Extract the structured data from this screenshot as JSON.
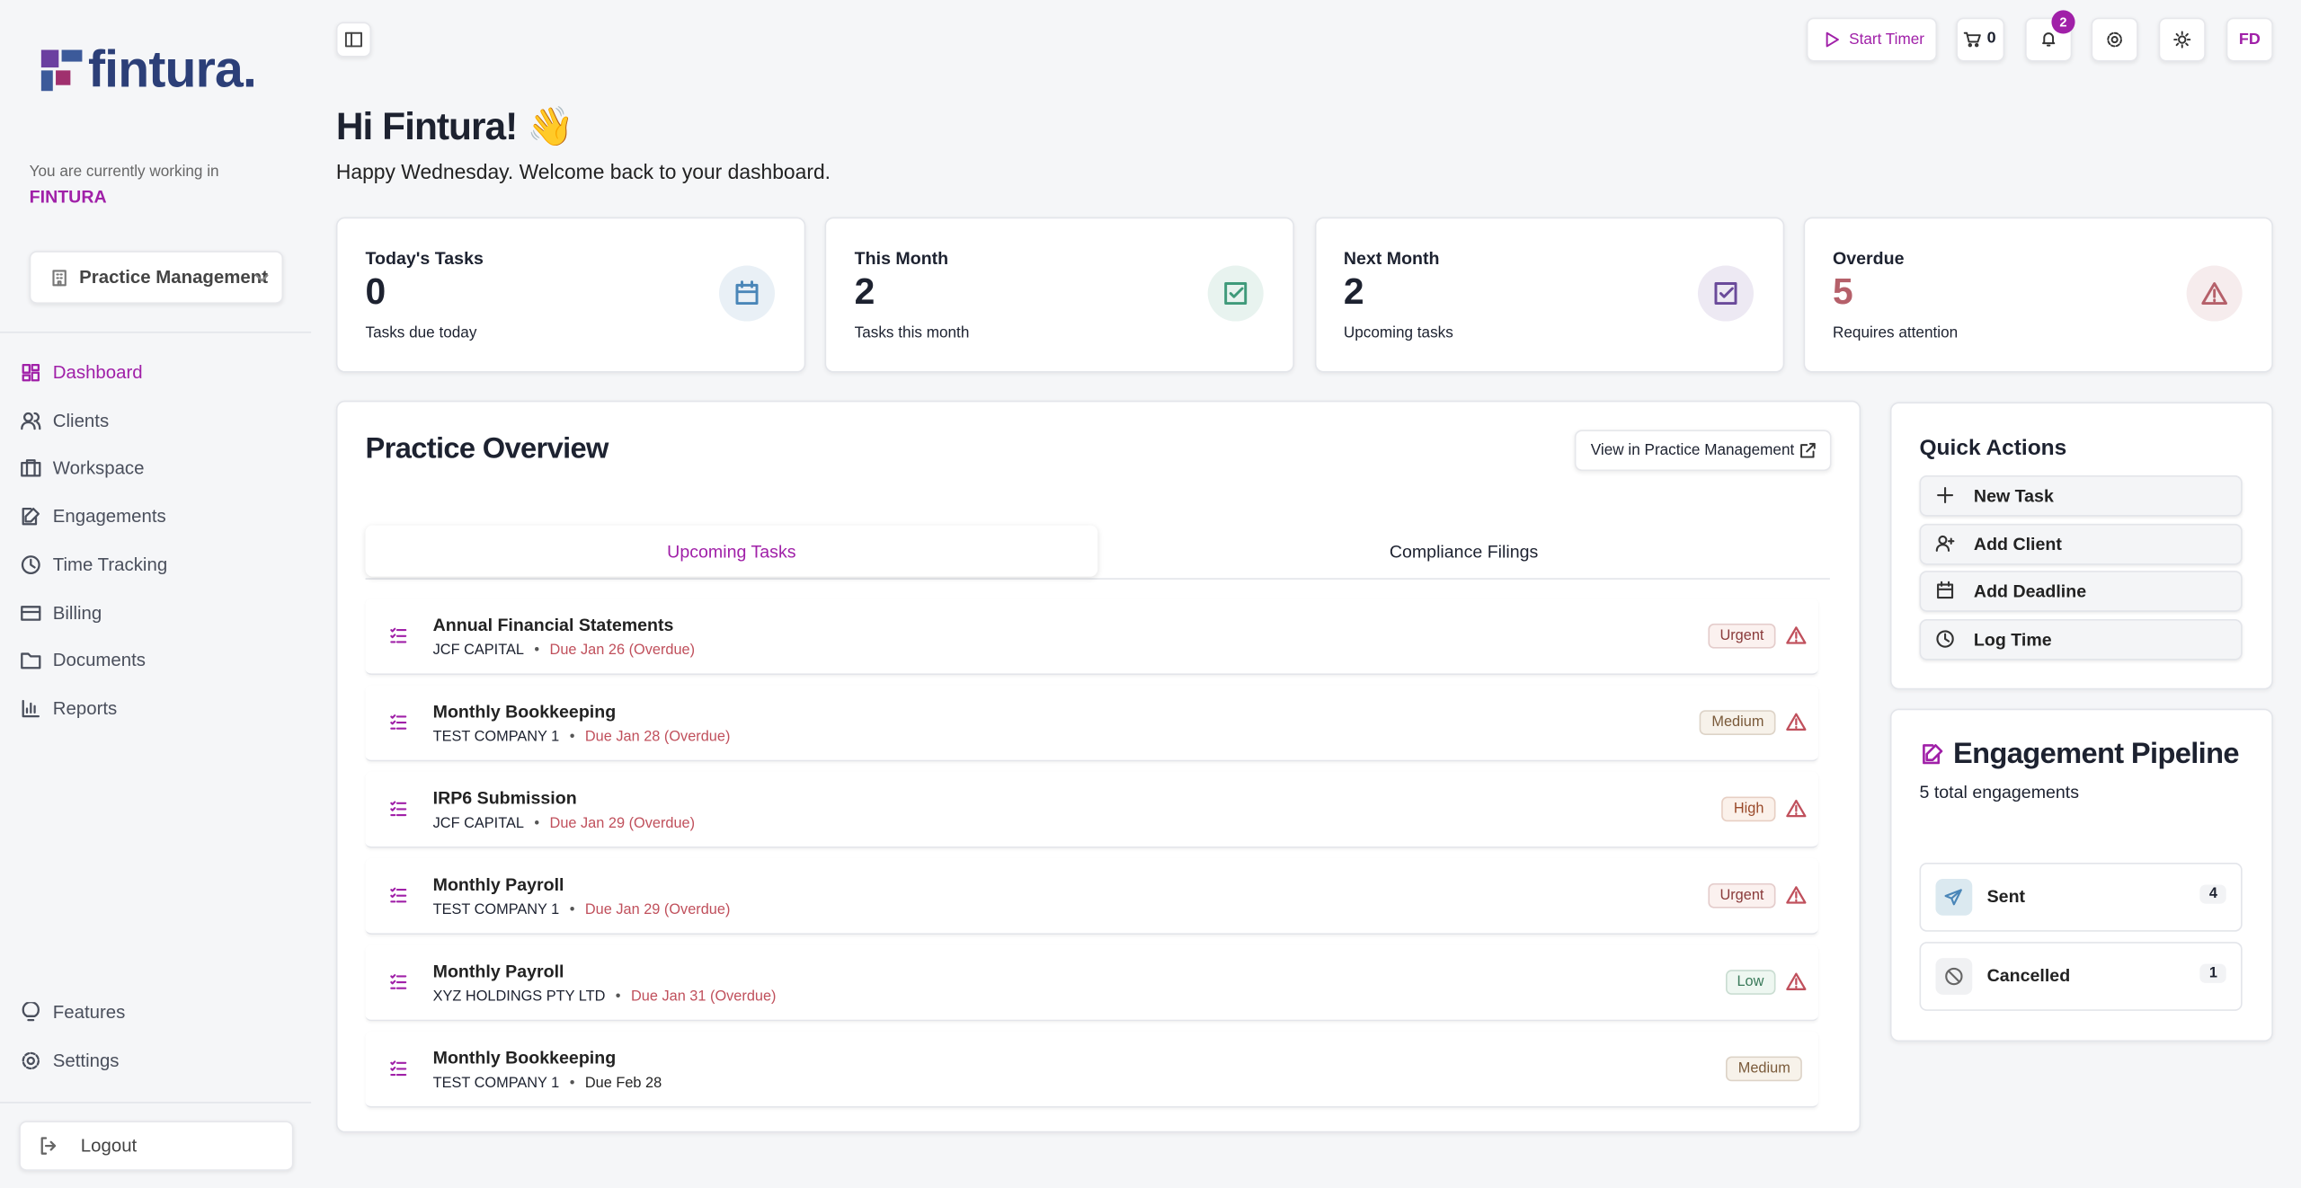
{
  "sidebar": {
    "logo": "fintura.",
    "working_label": "You are currently working in",
    "workspace": "FINTURA",
    "module": "Practice Management",
    "nav": [
      {
        "label": "Dashboard",
        "icon": "grid",
        "active": true
      },
      {
        "label": "Clients",
        "icon": "users",
        "active": false
      },
      {
        "label": "Workspace",
        "icon": "case",
        "active": false
      },
      {
        "label": "Engagements",
        "icon": "edit",
        "active": false
      },
      {
        "label": "Time Tracking",
        "icon": "clock",
        "active": false
      },
      {
        "label": "Billing",
        "icon": "card",
        "active": false
      },
      {
        "label": "Documents",
        "icon": "folder",
        "active": false
      },
      {
        "label": "Reports",
        "icon": "chart",
        "active": false
      }
    ],
    "footer_nav": [
      {
        "label": "Features",
        "icon": "bulb"
      },
      {
        "label": "Settings",
        "icon": "gear"
      }
    ],
    "logout": "Logout"
  },
  "topbar": {
    "start_timer": "Start Timer",
    "cart_count": 0,
    "notifications": 2,
    "avatar": "FD"
  },
  "greeting": {
    "title": "Hi Fintura! 👋",
    "subtitle": "Happy Wednesday. Welcome back to your dashboard."
  },
  "stats": [
    {
      "label": "Today's Tasks",
      "value": 0,
      "caption": "Tasks due today",
      "color": "#4a86b8",
      "icon": "cal"
    },
    {
      "label": "This Month",
      "value": 2,
      "caption": "Tasks this month",
      "color": "#3f9a7a",
      "icon": "check"
    },
    {
      "label": "Next Month",
      "value": 2,
      "caption": "Upcoming tasks",
      "color": "#6a4a9a",
      "icon": "check"
    },
    {
      "label": "Overdue",
      "value": 5,
      "caption": "Requires attention",
      "color": "#b5606a",
      "icon": "warn"
    }
  ],
  "overview": {
    "title": "Practice Overview",
    "link": "View in Practice Management",
    "tabs": [
      "Upcoming Tasks",
      "Compliance Filings"
    ],
    "tasks": [
      {
        "title": "Annual Financial Statements",
        "client": "JCF CAPITAL",
        "due": "Due Jan 26 (Overdue)",
        "priority": "Urgent",
        "overdue": true
      },
      {
        "title": "Monthly Bookkeeping",
        "client": "TEST COMPANY 1",
        "due": "Due Jan 28 (Overdue)",
        "priority": "Medium",
        "overdue": true
      },
      {
        "title": "IRP6 Submission",
        "client": "JCF CAPITAL",
        "due": "Due Jan 29 (Overdue)",
        "priority": "High",
        "overdue": true
      },
      {
        "title": "Monthly Payroll",
        "client": "TEST COMPANY 1",
        "due": "Due Jan 29 (Overdue)",
        "priority": "Urgent",
        "overdue": true
      },
      {
        "title": "Monthly Payroll",
        "client": "XYZ HOLDINGS PTY LTD",
        "due": "Due Jan 31 (Overdue)",
        "priority": "Low",
        "overdue": true
      },
      {
        "title": "Monthly Bookkeeping",
        "client": "TEST COMPANY 1",
        "due": "Due Feb 28",
        "priority": "Medium",
        "overdue": false
      }
    ]
  },
  "quick_actions": {
    "title": "Quick Actions",
    "items": [
      {
        "label": "New Task",
        "icon": "plus"
      },
      {
        "label": "Add Client",
        "icon": "useradd"
      },
      {
        "label": "Add Deadline",
        "icon": "cal"
      },
      {
        "label": "Log Time",
        "icon": "clock"
      }
    ]
  },
  "pipeline": {
    "title": "Engagement Pipeline",
    "subtitle": "5 total engagements",
    "stages": [
      {
        "label": "Sent",
        "count": 4,
        "icon": "send"
      },
      {
        "label": "Cancelled",
        "count": 1,
        "icon": "ban"
      }
    ]
  }
}
